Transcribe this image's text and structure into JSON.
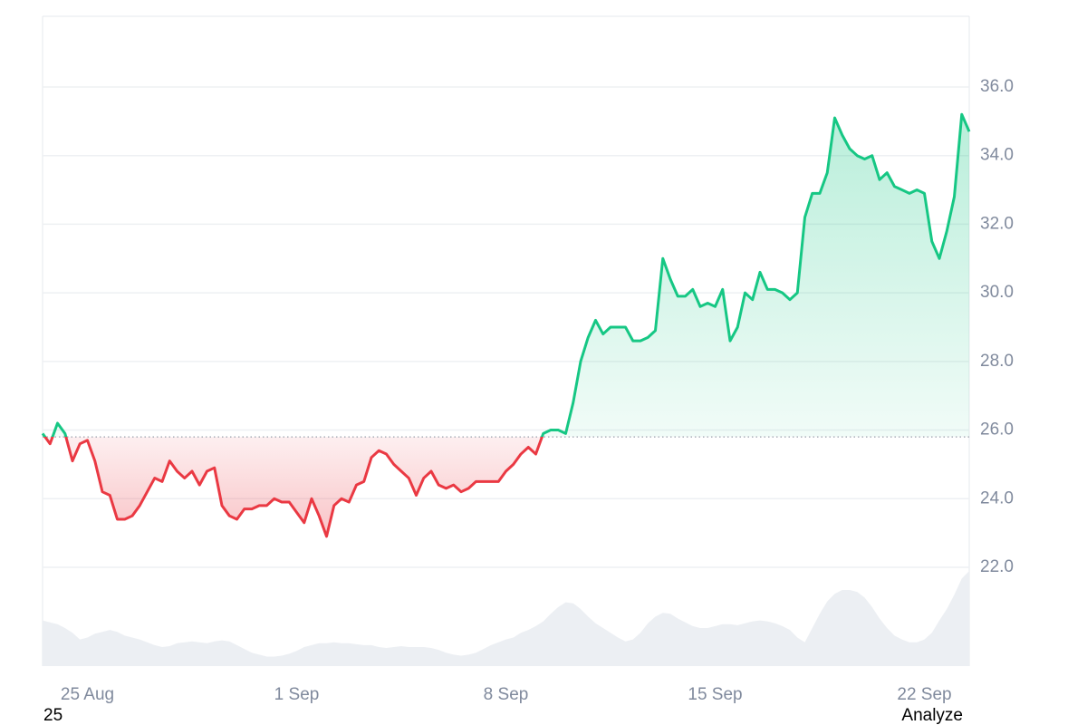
{
  "chart_data": {
    "type": "line",
    "values": [
      25.9,
      25.6,
      26.2,
      25.9,
      25.1,
      25.6,
      25.7,
      25.1,
      24.2,
      24.1,
      23.4,
      23.4,
      23.5,
      23.8,
      24.2,
      24.6,
      24.5,
      25.1,
      24.8,
      24.6,
      24.8,
      24.4,
      24.8,
      24.9,
      23.8,
      23.5,
      23.4,
      23.7,
      23.7,
      23.8,
      23.8,
      24.0,
      23.9,
      23.9,
      23.6,
      23.3,
      24.0,
      23.5,
      22.9,
      23.8,
      24.0,
      23.9,
      24.4,
      24.5,
      25.2,
      25.4,
      25.3,
      25.0,
      24.8,
      24.6,
      24.1,
      24.6,
      24.8,
      24.4,
      24.3,
      24.4,
      24.2,
      24.3,
      24.5,
      24.5,
      24.5,
      24.5,
      24.8,
      25.0,
      25.3,
      25.5,
      25.3,
      25.9,
      26.0,
      26.0,
      25.9,
      26.8,
      28.0,
      28.7,
      29.2,
      28.8,
      29.0,
      29.0,
      29.0,
      28.6,
      28.6,
      28.7,
      28.9,
      31.0,
      30.4,
      29.9,
      29.9,
      30.1,
      29.6,
      29.7,
      29.6,
      30.1,
      28.6,
      29.0,
      30.0,
      29.8,
      30.6,
      30.1,
      30.1,
      30.0,
      29.8,
      30.0,
      32.2,
      32.9,
      32.9,
      33.5,
      35.1,
      34.6,
      34.2,
      34.0,
      33.9,
      34.0,
      33.3,
      33.5,
      33.1,
      33.0,
      32.9,
      33.0,
      32.9,
      31.5,
      31.0,
      31.8,
      32.8,
      35.2,
      34.7
    ],
    "volume": [
      48,
      46,
      44,
      40,
      35,
      28,
      30,
      34,
      36,
      38,
      36,
      32,
      30,
      28,
      25,
      22,
      20,
      21,
      24,
      25,
      26,
      25,
      24,
      26,
      27,
      26,
      22,
      18,
      14,
      12,
      10,
      10,
      11,
      13,
      16,
      20,
      22,
      24,
      24,
      25,
      24,
      24,
      23,
      22,
      22,
      20,
      19,
      20,
      21,
      20,
      20,
      20,
      19,
      17,
      14,
      12,
      11,
      12,
      14,
      18,
      22,
      25,
      28,
      30,
      35,
      38,
      42,
      47,
      55,
      62,
      67,
      66,
      60,
      52,
      45,
      40,
      35,
      30,
      26,
      28,
      35,
      45,
      52,
      56,
      55,
      50,
      46,
      42,
      40,
      40,
      42,
      44,
      44,
      43,
      45,
      47,
      48,
      47,
      45,
      42,
      38,
      30,
      25,
      40,
      55,
      68,
      76,
      80,
      80,
      78,
      72,
      62,
      50,
      40,
      32,
      28,
      25,
      25,
      28,
      35,
      48,
      60,
      75,
      92,
      100
    ],
    "baseline": 25.8,
    "up_color": "#16c784",
    "down_color": "#ea3943",
    "volume_color": "#eceff3",
    "ylim": [
      19.12,
      38.06
    ],
    "yticks": [
      {
        "value": 22,
        "label": "22.0"
      },
      {
        "value": 24,
        "label": "24.0"
      },
      {
        "value": 26,
        "label": "26.0"
      },
      {
        "value": 28,
        "label": "28.0"
      },
      {
        "value": 30,
        "label": "30.0"
      },
      {
        "value": 32,
        "label": "32.0"
      },
      {
        "value": 34,
        "label": "34.0"
      },
      {
        "value": 36,
        "label": "36.0"
      }
    ],
    "xlim": [
      0,
      124
    ],
    "xticks": [
      {
        "value": 6,
        "label": "25 Aug"
      },
      {
        "value": 34,
        "label": "1 Sep"
      },
      {
        "value": 62,
        "label": "8 Sep"
      },
      {
        "value": 90,
        "label": "15 Sep"
      },
      {
        "value": 118,
        "label": "22 Sep"
      }
    ],
    "grid": true,
    "footer_left": "25",
    "footer_right": "Analyze"
  }
}
